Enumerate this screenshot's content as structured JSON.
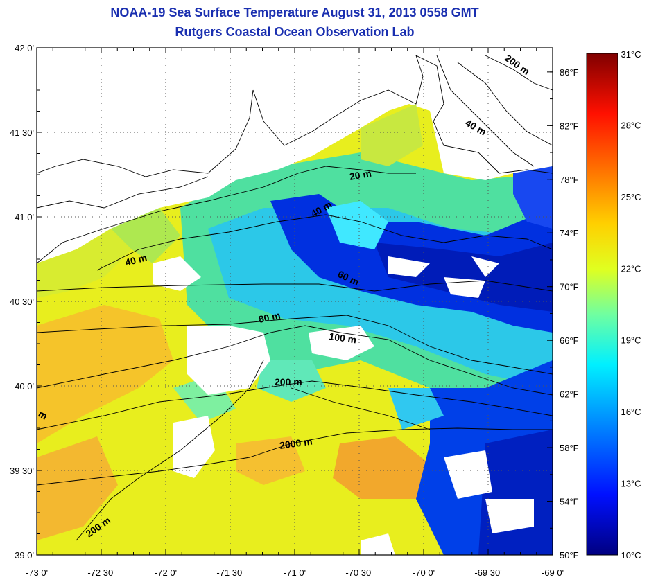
{
  "header": {
    "title": "NOAA-19 Sea Surface Temperature August 31, 2013 0558 GMT",
    "subtitle": "Rutgers Coastal Ocean Observation Lab"
  },
  "map": {
    "lon_range": [
      -73,
      -69
    ],
    "lat_range": [
      39,
      42
    ],
    "lon_ticks": [
      "-73 0'",
      "-72 30'",
      "-72 0'",
      "-71 30'",
      "-71 0'",
      "-70 30'",
      "-70 0'",
      "-69 30'",
      "-69 0'"
    ],
    "lat_ticks": [
      "42 0'",
      "41 30'",
      "41 0'",
      "40 30'",
      "40 0'",
      "39 30'",
      "39 0'"
    ],
    "fahrenheit_ticks": [
      "86°F",
      "82°F",
      "78°F",
      "74°F",
      "70°F",
      "66°F",
      "62°F",
      "58°F",
      "54°F",
      "50°F"
    ],
    "isobath_labels": [
      "200 m",
      "40 m",
      "20 m",
      "40 m",
      "40 m",
      "60 m",
      "80 m",
      "100 m",
      "200 m",
      "2000 m",
      "200 m",
      "m"
    ]
  },
  "colorbar": {
    "range_c": [
      10,
      31
    ],
    "ticks_c": [
      "31°C",
      "28°C",
      "25°C",
      "22°C",
      "19°C",
      "16°C",
      "13°C",
      "10°C"
    ],
    "colors": [
      "#000080",
      "#0010ff",
      "#0090ff",
      "#00f0ff",
      "#70ffa0",
      "#e0ff20",
      "#ffd000",
      "#ff7000",
      "#ff1000",
      "#800000"
    ]
  }
}
